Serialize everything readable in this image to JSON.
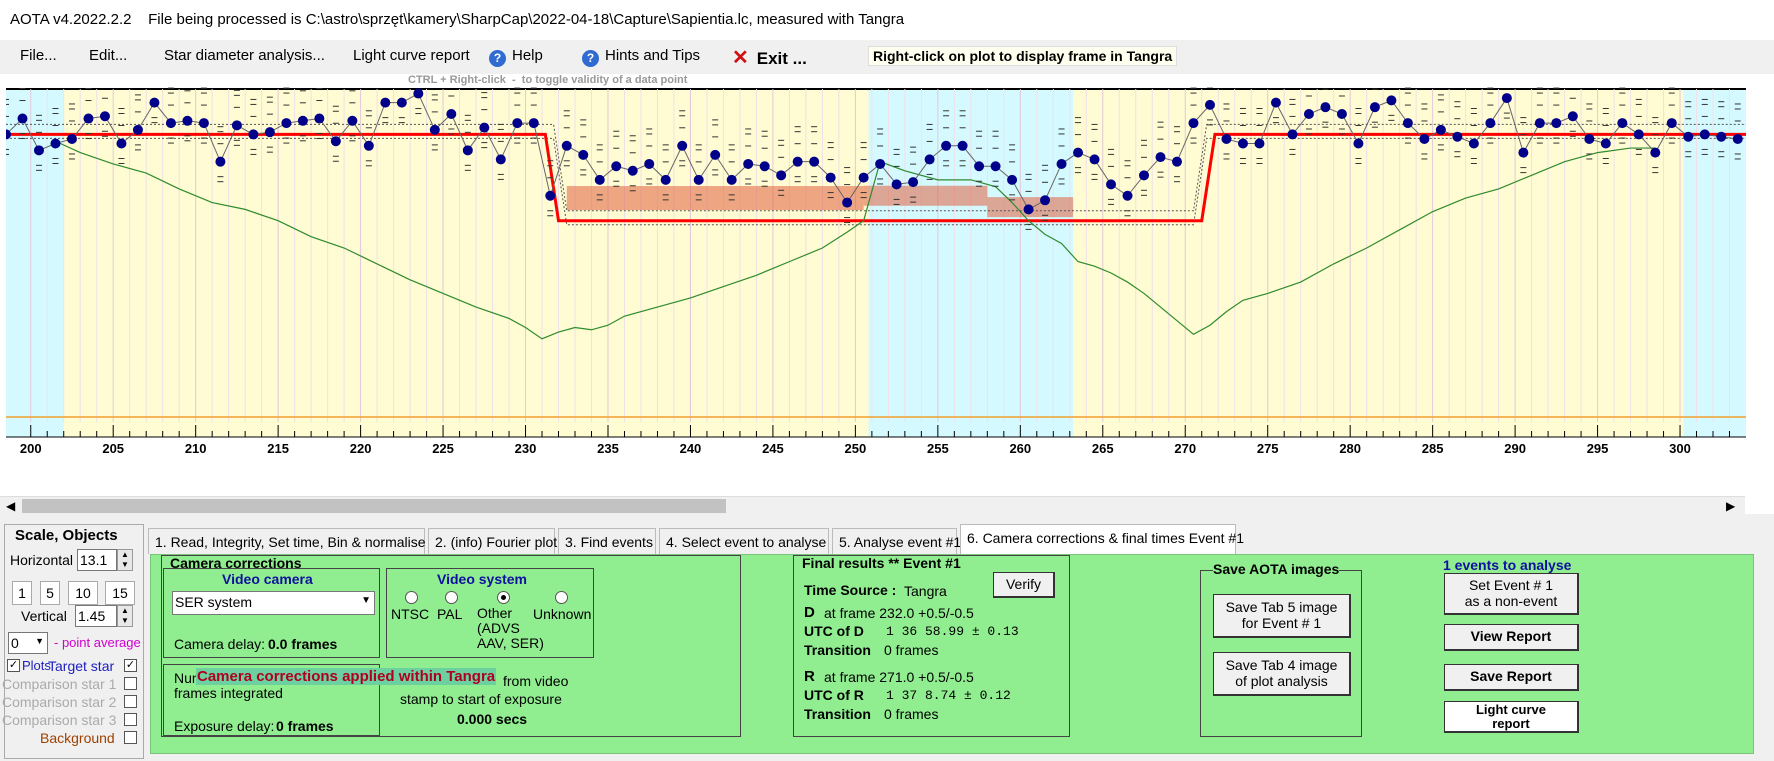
{
  "window": {
    "title": "AOTA v4.2022.2.2    File being processed is C:\\astro\\sprzęt\\kamery\\SharpCap\\2022-04-18\\Capture\\Sapientia.lc, measured with Tangra"
  },
  "menu": {
    "file": "File...",
    "edit": "Edit...",
    "star_diameter": "Star diameter analysis...",
    "light_curve_report": "Light curve report",
    "help": "Help",
    "hints": "Hints and Tips",
    "exit": "Exit ...",
    "right_click_tip": "Right-click on plot to display frame in Tangra",
    "ctrl_tip": "CTRL + Right-click  -  to toggle validity of a data point"
  },
  "chart_data": {
    "type": "scatter",
    "x_ticks": [
      "200",
      "205",
      "210",
      "215",
      "220",
      "225",
      "230",
      "235",
      "240",
      "245",
      "250",
      "255",
      "260",
      "265",
      "270",
      "275",
      "280",
      "285",
      "290",
      "295",
      "300"
    ],
    "xlim": [
      198.5,
      304
    ],
    "ylim": [
      -0.2,
      1.2
    ],
    "event": {
      "D_frame": 232.0,
      "R_frame": 271.0,
      "baseline": 1.0,
      "bottom": 0.62
    },
    "series": [
      {
        "values": [
          [
            198.5,
            1.0
          ],
          [
            199.5,
            1.07
          ],
          [
            200.5,
            0.93
          ],
          [
            201.5,
            0.96
          ],
          [
            202.5,
            0.98
          ],
          [
            203.5,
            1.07
          ],
          [
            204.5,
            1.08
          ],
          [
            205.5,
            0.96
          ],
          [
            206.5,
            1.02
          ],
          [
            207.5,
            1.14
          ],
          [
            208.5,
            1.05
          ],
          [
            209.5,
            1.06
          ],
          [
            210.5,
            1.05
          ],
          [
            211.5,
            0.88
          ],
          [
            212.5,
            1.04
          ],
          [
            213.5,
            1.0
          ],
          [
            214.5,
            1.01
          ],
          [
            215.5,
            1.05
          ],
          [
            216.5,
            1.06
          ],
          [
            217.5,
            1.07
          ],
          [
            218.5,
            0.97
          ],
          [
            219.5,
            1.06
          ],
          [
            220.5,
            0.95
          ],
          [
            221.5,
            1.14
          ],
          [
            222.5,
            1.14
          ],
          [
            223.5,
            1.18
          ],
          [
            224.5,
            1.02
          ],
          [
            225.5,
            1.09
          ],
          [
            226.5,
            0.93
          ],
          [
            227.5,
            1.03
          ],
          [
            228.5,
            0.89
          ],
          [
            229.5,
            1.05
          ],
          [
            230.5,
            1.05
          ],
          [
            231.5,
            0.73
          ],
          [
            232.5,
            0.95
          ],
          [
            233.5,
            0.91
          ],
          [
            234.5,
            0.8
          ],
          [
            235.5,
            0.86
          ],
          [
            236.5,
            0.84
          ],
          [
            237.5,
            0.87
          ],
          [
            238.5,
            0.8
          ],
          [
            239.5,
            0.95
          ],
          [
            240.5,
            0.8
          ],
          [
            241.5,
            0.91
          ],
          [
            242.5,
            0.8
          ],
          [
            243.5,
            0.87
          ],
          [
            244.5,
            0.86
          ],
          [
            245.5,
            0.82
          ],
          [
            246.5,
            0.88
          ],
          [
            247.5,
            0.88
          ],
          [
            248.5,
            0.81
          ],
          [
            249.5,
            0.7
          ],
          [
            250.5,
            0.81
          ],
          [
            251.5,
            0.87
          ],
          [
            252.5,
            0.78
          ],
          [
            253.5,
            0.79
          ],
          [
            254.5,
            0.89
          ],
          [
            255.5,
            0.95
          ],
          [
            256.5,
            0.95
          ],
          [
            257.5,
            0.86
          ],
          [
            258.5,
            0.86
          ],
          [
            259.5,
            0.8
          ],
          [
            260.5,
            0.67
          ],
          [
            261.5,
            0.71
          ],
          [
            262.5,
            0.87
          ],
          [
            263.5,
            0.92
          ],
          [
            264.5,
            0.89
          ],
          [
            265.5,
            0.78
          ],
          [
            266.5,
            0.73
          ],
          [
            267.5,
            0.82
          ],
          [
            268.5,
            0.9
          ],
          [
            269.5,
            0.88
          ],
          [
            270.5,
            1.05
          ],
          [
            271.5,
            1.13
          ],
          [
            272.5,
            0.98
          ],
          [
            273.5,
            0.96
          ],
          [
            274.5,
            0.96
          ],
          [
            275.5,
            1.14
          ],
          [
            276.5,
            1.0
          ],
          [
            277.5,
            1.09
          ],
          [
            278.5,
            1.12
          ],
          [
            279.5,
            1.09
          ],
          [
            280.5,
            0.96
          ],
          [
            281.5,
            1.12
          ],
          [
            282.5,
            1.15
          ],
          [
            283.5,
            1.05
          ],
          [
            284.5,
            0.98
          ],
          [
            285.5,
            1.02
          ],
          [
            286.5,
            0.99
          ],
          [
            287.5,
            0.96
          ],
          [
            288.5,
            1.05
          ],
          [
            289.5,
            1.16
          ],
          [
            290.5,
            0.92
          ],
          [
            291.5,
            1.05
          ],
          [
            292.5,
            1.05
          ],
          [
            293.5,
            1.08
          ],
          [
            294.5,
            0.98
          ],
          [
            295.5,
            0.96
          ],
          [
            296.5,
            1.05
          ],
          [
            297.5,
            1.0
          ],
          [
            298.5,
            0.92
          ],
          [
            299.5,
            1.05
          ],
          [
            300.5,
            0.99
          ],
          [
            301.5,
            1.0
          ],
          [
            302.5,
            0.99
          ],
          [
            303.5,
            0.98
          ]
        ]
      },
      {
        "values": [
          [
            201.5,
            0.97
          ],
          [
            203,
            0.92
          ],
          [
            205,
            0.87
          ],
          [
            207,
            0.83
          ],
          [
            209,
            0.76
          ],
          [
            211,
            0.7
          ],
          [
            213,
            0.67
          ],
          [
            215,
            0.62
          ],
          [
            217,
            0.55
          ],
          [
            219,
            0.5
          ],
          [
            221,
            0.43
          ],
          [
            223,
            0.36
          ],
          [
            225,
            0.3
          ],
          [
            227,
            0.24
          ],
          [
            229,
            0.19
          ],
          [
            230,
            0.15
          ],
          [
            231,
            0.1
          ],
          [
            232,
            0.13
          ],
          [
            233,
            0.15
          ],
          [
            234,
            0.14
          ],
          [
            235,
            0.16
          ],
          [
            236,
            0.2
          ],
          [
            238,
            0.24
          ],
          [
            240,
            0.28
          ],
          [
            242,
            0.33
          ],
          [
            244,
            0.38
          ],
          [
            246,
            0.44
          ],
          [
            248,
            0.5
          ],
          [
            249.5,
            0.57
          ],
          [
            250.5,
            0.62
          ],
          [
            251.5,
            0.88
          ],
          [
            253,
            0.84
          ],
          [
            255,
            0.8
          ],
          [
            257,
            0.8
          ],
          [
            258.5,
            0.77
          ],
          [
            259.5,
            0.7
          ],
          [
            260.5,
            0.62
          ],
          [
            261.5,
            0.56
          ],
          [
            262.5,
            0.52
          ],
          [
            263.5,
            0.44
          ],
          [
            264.5,
            0.42
          ],
          [
            265.5,
            0.39
          ],
          [
            266.5,
            0.35
          ],
          [
            267.5,
            0.3
          ],
          [
            268.5,
            0.24
          ],
          [
            269.5,
            0.18
          ],
          [
            270.5,
            0.12
          ],
          [
            271.5,
            0.16
          ],
          [
            272.5,
            0.22
          ],
          [
            273.5,
            0.27
          ],
          [
            275,
            0.3
          ],
          [
            277,
            0.35
          ],
          [
            279,
            0.43
          ],
          [
            281,
            0.5
          ],
          [
            283,
            0.58
          ],
          [
            285,
            0.66
          ],
          [
            287,
            0.72
          ],
          [
            289,
            0.76
          ],
          [
            291,
            0.82
          ],
          [
            293,
            0.88
          ],
          [
            295,
            0.92
          ],
          [
            297,
            0.94
          ],
          [
            298.5,
            0.94
          ]
        ]
      }
    ]
  },
  "tabs": [
    "1.  Read, Integrity, Set time, Bin & normalise",
    "2. (info)  Fourier plot",
    "3. Find events",
    "4. Select event to analyse",
    "5. Analyse event #1",
    "6. Camera corrections & final times Event #1"
  ],
  "left_panel": {
    "scale_title": "Scale, Objects",
    "horizontal_label": "Horizontal",
    "horizontal_value": "13.1",
    "buttons": [
      "1",
      "5",
      "10",
      "15"
    ],
    "vertical_label": "Vertical",
    "vertical_value": "1.45",
    "point_avg_value": "0",
    "point_avg_label": "- point average",
    "plots_label": "Plots",
    "target_star": "Target star",
    "comparison1": "Comparison star 1",
    "comparison2": "Comparison star 2",
    "comparison3": "Comparison star 3",
    "background": "Background"
  },
  "camera": {
    "group_title": "Camera corrections",
    "video_camera_title": "Video camera",
    "camera_select": "SER system",
    "camera_delay_label": "Camera delay:",
    "camera_delay_value": "0.0 frames",
    "video_system_title": "Video system",
    "ntsc": "NTSC",
    "pal": "PAL",
    "other": "Other\n(ADVS\nAAV, SER)",
    "unknown": "Unknown",
    "num_frames_label1": "Num",
    "num_frames_label2": "frames integrated",
    "overlay": "Camera corrections applied within Tangra",
    "from_video": "from video",
    "stamp_label": "stamp to start of exposure",
    "exposure_secs": "0.000 secs",
    "exposure_delay_label": "Exposure delay:",
    "exposure_delay_value": "0 frames"
  },
  "final": {
    "title": "Final results  ** Event #1",
    "time_source_label": "Time Source :",
    "time_source_value": "Tangra",
    "verify": "Verify",
    "d_label": "D",
    "d_frame": "at frame 232.0  +0.5/-0.5",
    "utc_d_label": "UTC of D",
    "utc_d_value": "1 36 58.99  ± 0.13",
    "transition_d_label": "Transition",
    "transition_d_value": "0 frames",
    "r_label": "R",
    "r_frame": "at frame 271.0  +0.5/-0.5",
    "utc_r_label": "UTC of R",
    "utc_r_value": "1 37  8.74  ± 0.12",
    "transition_r_label": "Transition",
    "transition_r_value": "0 frames"
  },
  "save": {
    "title": "Save AOTA images",
    "tab5": "Save Tab 5 image\nfor Event # 1",
    "tab4": "Save Tab 4 image\nof plot analysis"
  },
  "right": {
    "events_label": "1  events to analyse",
    "set_nonevent": "Set Event # 1\nas a non-event",
    "view_report": "View Report",
    "save_report": "Save Report",
    "lc_report": "Light curve\nreport"
  },
  "colors": {
    "accent_green": "#90ee90",
    "plot_yellow": "#fffbd2",
    "plot_cyan": "#d4faff",
    "model_red": "#ff0000",
    "point_navy": "#00008b",
    "comparison_green": "#2e8b2e"
  }
}
